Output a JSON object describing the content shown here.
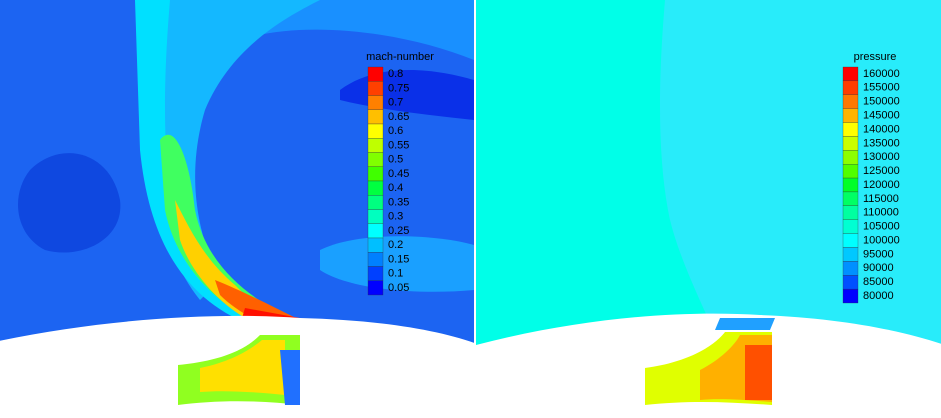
{
  "panels": [
    {
      "legend": {
        "title": "mach-number",
        "labels": [
          "0.8",
          "0.75",
          "0.7",
          "0.65",
          "0.6",
          "0.55",
          "0.5",
          "0.45",
          "0.4",
          "0.35",
          "0.3",
          "0.25",
          "0.2",
          "0.15",
          "0.1",
          "0.05"
        ],
        "colors": [
          "#ff0000",
          "#ff4000",
          "#ff8000",
          "#ffbf00",
          "#ffff00",
          "#bfff00",
          "#80ff00",
          "#40ff00",
          "#00ff40",
          "#00ff80",
          "#00ffbf",
          "#00ffff",
          "#00bfff",
          "#0080ff",
          "#0040ff",
          "#0000ff"
        ]
      }
    },
    {
      "legend": {
        "title": "pressure",
        "labels": [
          "160000",
          "155000",
          "150000",
          "145000",
          "140000",
          "135000",
          "130000",
          "125000",
          "120000",
          "115000",
          "110000",
          "105000",
          "100000",
          "95000",
          "90000",
          "85000",
          "80000"
        ],
        "colors": [
          "#ff0000",
          "#ff3c00",
          "#ff7800",
          "#ffb400",
          "#ffff00",
          "#c8ff00",
          "#8cff00",
          "#50ff00",
          "#00ff28",
          "#00ff64",
          "#00ffa0",
          "#00ffd2",
          "#00ffff",
          "#00c8ff",
          "#0090ff",
          "#0050ff",
          "#0000ff"
        ]
      }
    }
  ]
}
